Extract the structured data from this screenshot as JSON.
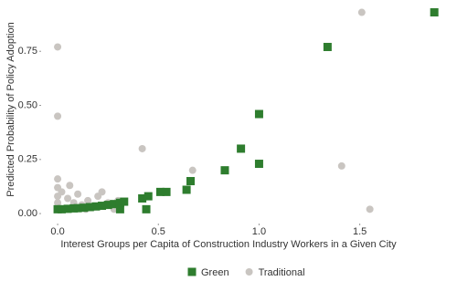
{
  "chart_data": {
    "type": "scatter",
    "x_label": "Interest Groups per Capita of Construction Industry Workers in a Given City",
    "y_label": "Predicted Probability of Policy Adoption",
    "xlim": [
      -0.082,
      1.96
    ],
    "ylim": [
      -0.046,
      0.966
    ],
    "xticks": [
      {
        "value": 0,
        "label": "0.0"
      },
      {
        "value": 0.5,
        "label": "0.5"
      },
      {
        "value": 1,
        "label": "1.0"
      },
      {
        "value": 1.5,
        "label": "1.5"
      }
    ],
    "yticks": [
      {
        "value": 0,
        "label": "0.00"
      },
      {
        "value": 0.25,
        "label": "0.25"
      },
      {
        "value": 0.5,
        "label": "0.50"
      },
      {
        "value": 0.75,
        "label": "0.75"
      }
    ],
    "legend": "bottom",
    "series": [
      {
        "name": "Traditional",
        "color": "#c9c5c1",
        "marker": "circle",
        "x": [
          0,
          0,
          0,
          0,
          0,
          0,
          0,
          0.02,
          0.05,
          0.08,
          0.1,
          0.12,
          0.15,
          0.18,
          0.2,
          0.25,
          0.28,
          0.3,
          0.22,
          0.06,
          0.14,
          0.42,
          0.67,
          1.51,
          1.41,
          1.55
        ],
        "y": [
          0.77,
          0.45,
          0.16,
          0.12,
          0.08,
          0.05,
          0.03,
          0.1,
          0.07,
          0.05,
          0.09,
          0.04,
          0.06,
          0.03,
          0.08,
          0.05,
          0.02,
          0.06,
          0.1,
          0.13,
          0.02,
          0.3,
          0.2,
          0.93,
          0.22,
          0.02
        ]
      },
      {
        "name": "Green",
        "color": "#2e7d2e",
        "marker": "square",
        "x": [
          0,
          0.02,
          0.05,
          0.08,
          0.1,
          0.13,
          0.16,
          0.19,
          0.22,
          0.25,
          0.28,
          0.31,
          0.33,
          0.31,
          0.42,
          0.45,
          0.44,
          0.51,
          0.54,
          0.64,
          0.66,
          0.83,
          0.91,
          1.0,
          1.0,
          1.34,
          1.87
        ],
        "y": [
          0.02,
          0.02,
          0.022,
          0.024,
          0.025,
          0.027,
          0.03,
          0.033,
          0.036,
          0.04,
          0.044,
          0.05,
          0.055,
          0.02,
          0.07,
          0.08,
          0.02,
          0.1,
          0.1,
          0.11,
          0.15,
          0.2,
          0.3,
          0.23,
          0.46,
          0.77,
          0.93
        ]
      }
    ]
  }
}
